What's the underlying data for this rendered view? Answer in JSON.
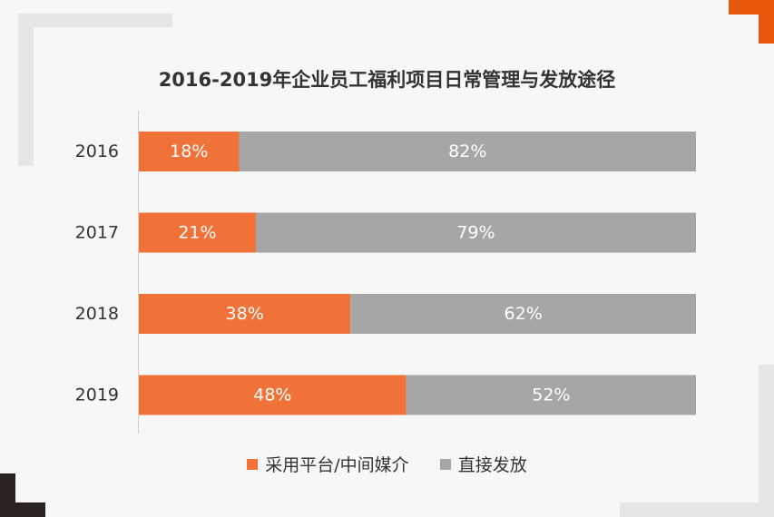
{
  "colors": {
    "series1": "#f07238",
    "series2": "#a6a6a6",
    "accent": "#e8580c",
    "dark": "#2b2320",
    "frame": "#e6e6e6"
  },
  "chart_data": {
    "type": "bar",
    "orientation": "horizontal",
    "stacked": true,
    "title": "2016-2019年企业员工福利项目日常管理与发放途径",
    "categories": [
      "2016",
      "2017",
      "2018",
      "2019"
    ],
    "series": [
      {
        "name": "采用平台/中间媒介",
        "values": [
          18,
          21,
          38,
          48
        ],
        "labels": [
          "18%",
          "21%",
          "38%",
          "48%"
        ]
      },
      {
        "name": "直接发放",
        "values": [
          82,
          79,
          62,
          52
        ],
        "labels": [
          "82%",
          "79%",
          "62%",
          "52%"
        ]
      }
    ],
    "xlim": [
      0,
      100
    ],
    "unit": "%",
    "legend": "bottom",
    "grid": false
  }
}
